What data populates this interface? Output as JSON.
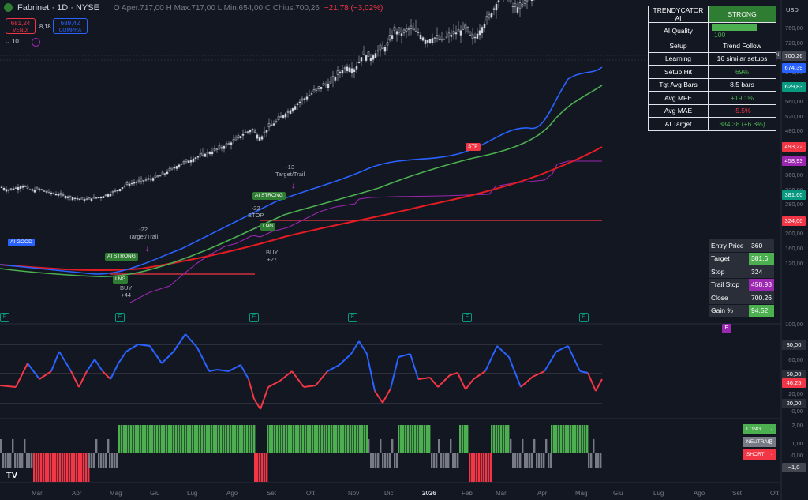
{
  "header": {
    "symbol": "Fabrinet · 1D · NYSE",
    "ohlc": "O Aper.717,00  H Max.717,00  L Min.654,00  C Chius.700,26",
    "change": "−21,78 (−3,02%)"
  },
  "trade_box": {
    "sell_price": "681,24",
    "sell_label": "VENDI",
    "spread": "8,18",
    "buy_price": "689,42",
    "buy_label": "COMPRA",
    "qty": "10"
  },
  "currency": "USD",
  "ai_table": {
    "title": "TRENDYCATOR AI",
    "status": "STRONG",
    "rows": [
      {
        "k": "AI Quality",
        "v": "100",
        "bar_fill": 1.0
      },
      {
        "k": "Setup",
        "v": "Trend Follow"
      },
      {
        "k": "Learning",
        "v": "16 similar setups"
      },
      {
        "k": "Setup Hit",
        "v": "69%"
      },
      {
        "k": "Tgt Avg Bars",
        "v": "8.5 bars"
      },
      {
        "k": "Avg MFE",
        "v": "+19.1%"
      },
      {
        "k": "Avg MAE",
        "v": "-5.5%"
      },
      {
        "k": "AI Target",
        "v": "384.38 (+6.8%)"
      }
    ]
  },
  "trade_table": {
    "rows": [
      {
        "k": "Entry Price",
        "v": "360"
      },
      {
        "k": "Target",
        "v": "381.6"
      },
      {
        "k": "Stop",
        "v": "324"
      },
      {
        "k": "Trail Stop",
        "v": "458.93"
      },
      {
        "k": "Close",
        "v": "700.26"
      },
      {
        "k": "Gain %",
        "v": "94.52"
      }
    ]
  },
  "signal_legend": {
    "long": "LONG",
    "neutral": "NEUTRAL",
    "neutral_count": "8",
    "short": "SHORT"
  },
  "price_axis": [
    "760,00",
    "720,00",
    "680,00",
    "640,00",
    "600,00",
    "560,00",
    "520,00",
    "480,00",
    "440,00",
    "400,00",
    "360,00",
    "320,00",
    "280,00",
    "240,00",
    "200,00",
    "160,00",
    "120,00"
  ],
  "price_tags": [
    {
      "v": "700,26",
      "color": "#ffffff",
      "bg": "#434651"
    },
    {
      "v": "674,39",
      "color": "#ffffff",
      "bg": "#2962ff"
    },
    {
      "v": "629,83",
      "color": "#ffffff",
      "bg": "#089981"
    },
    {
      "v": "493,22",
      "color": "#ffffff",
      "bg": "#f23645"
    },
    {
      "v": "458,93",
      "color": "#ffffff",
      "bg": "#9c27b0"
    },
    {
      "v": "381,60",
      "color": "#ffffff",
      "bg": "#089981"
    },
    {
      "v": "324,00",
      "color": "#ffffff",
      "bg": "#f23645"
    }
  ],
  "fn_tag": "FN",
  "osc_axis": [
    "100,00",
    "80,00",
    "60,00",
    "40,00",
    "20,00",
    "0,00"
  ],
  "osc_tags": [
    {
      "v": "80,00",
      "bg": "#2a2e39"
    },
    {
      "v": "50,00",
      "bg": "#2a2e39"
    },
    {
      "v": "46,25",
      "bg": "#f23645"
    },
    {
      "v": "20,00",
      "bg": "#2a2e39"
    }
  ],
  "sig_axis": [
    "2,00",
    "1,00",
    "0,00"
  ],
  "sig_tag": "−1,0",
  "x_labels": [
    "Mar",
    "Apr",
    "Mag",
    "Giu",
    "Lug",
    "Ago",
    "Set",
    "Ott",
    "Nov",
    "Dic",
    "2026",
    "Feb",
    "Mar",
    "Apr",
    "Mag",
    "Giu",
    "Lug",
    "Ago",
    "Set",
    "Ott"
  ],
  "annotations": {
    "ai_good": "AI GOOD",
    "ai_strong_1": "AI STRONG",
    "ai_strong_2": "AI STRONG",
    "lng_1": "LNG",
    "lng_2": "LNG",
    "stp": "STP",
    "buy_1": "BUY",
    "buy_1_pct": "+44",
    "buy_2": "BUY",
    "buy_2_pct": "+27",
    "tgt_1_pct": "-22",
    "tgt_1": "Target/Trail",
    "stop_pct": "-22",
    "stop": "STOP",
    "tgt_2_pct": "-13",
    "tgt_2": "Target/Trail",
    "e_mark": "E"
  },
  "chart_data": {
    "type": "line",
    "title": "",
    "price_range": [
      100,
      780
    ],
    "close_path": [
      [
        0,
        330
      ],
      [
        10,
        320
      ],
      [
        20,
        325
      ],
      [
        30,
        332
      ],
      [
        40,
        318
      ],
      [
        50,
        322
      ],
      [
        60,
        315
      ],
      [
        70,
        310
      ],
      [
        80,
        305
      ],
      [
        90,
        300
      ],
      [
        100,
        296
      ],
      [
        110,
        294
      ],
      [
        120,
        298
      ],
      [
        130,
        302
      ],
      [
        140,
        310
      ],
      [
        150,
        320
      ],
      [
        160,
        334
      ],
      [
        170,
        340
      ],
      [
        180,
        345
      ],
      [
        190,
        350
      ],
      [
        200,
        356
      ],
      [
        210,
        366
      ],
      [
        220,
        380
      ],
      [
        230,
        392
      ],
      [
        240,
        400
      ],
      [
        250,
        410
      ],
      [
        260,
        418
      ],
      [
        270,
        425
      ],
      [
        280,
        435
      ],
      [
        290,
        445
      ],
      [
        300,
        458
      ],
      [
        310,
        475
      ],
      [
        320,
        485
      ],
      [
        330,
        460
      ],
      [
        340,
        490
      ],
      [
        350,
        505
      ],
      [
        360,
        525
      ],
      [
        370,
        540
      ],
      [
        380,
        560
      ],
      [
        390,
        575
      ],
      [
        400,
        590
      ],
      [
        410,
        605
      ],
      [
        420,
        612
      ],
      [
        430,
        640
      ],
      [
        440,
        655
      ],
      [
        450,
        648
      ],
      [
        460,
        690
      ],
      [
        470,
        680
      ],
      [
        480,
        700
      ],
      [
        490,
        710
      ],
      [
        500,
        755
      ],
      [
        510,
        745
      ],
      [
        520,
        760
      ],
      [
        530,
        750
      ],
      [
        540,
        725
      ],
      [
        550,
        735
      ],
      [
        560,
        728
      ],
      [
        570,
        740
      ],
      [
        580,
        750
      ],
      [
        590,
        760
      ],
      [
        600,
        730
      ],
      [
        610,
        760
      ],
      [
        620,
        790
      ],
      [
        630,
        830
      ],
      [
        640,
        860
      ],
      [
        650,
        820
      ],
      [
        660,
        815
      ],
      [
        670,
        840
      ],
      [
        680,
        860
      ],
      [
        690,
        880
      ],
      [
        700,
        920
      ],
      [
        710,
        960
      ],
      [
        720,
        1010
      ],
      [
        730,
        1030
      ],
      [
        740,
        1000
      ],
      [
        750,
        990
      ],
      [
        760,
        1060
      ]
    ]
  }
}
